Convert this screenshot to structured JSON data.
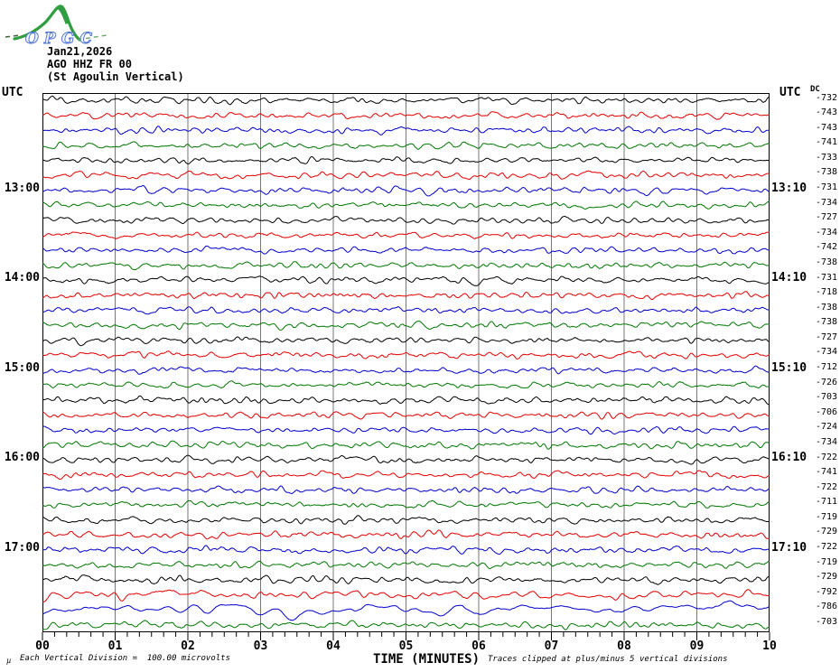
{
  "logo": {
    "text": "OPGC",
    "curve_color": "#2e9e40",
    "text_stroke_color": "#4a6fd4",
    "dash_color": "#44603a"
  },
  "header": {
    "date": "Jan21,2026",
    "station": "AGO HHZ FR 00",
    "station_name": "(St Agoulin Vertical)"
  },
  "axis": {
    "utc_left": "UTC",
    "utc_right": "UTC",
    "dc_header": "DC",
    "xlabel": "TIME (MINUTES)",
    "x_ticks": [
      "00",
      "01",
      "02",
      "03",
      "04",
      "05",
      "06",
      "07",
      "08",
      "09",
      "10"
    ],
    "x_minor_per_major": 5
  },
  "footer": {
    "mu": "µ",
    "division_note": "Each Vertical Division =  100.00 microvolts",
    "clip_note": "Traces clipped at plus/minus 5 vertical divisions"
  },
  "colors": {
    "trace_cycle": [
      "#000000",
      "#e60000",
      "#0000cc",
      "#007700"
    ],
    "trace_cycle_names": [
      "black",
      "red",
      "blue",
      "green"
    ],
    "grid": "#777777",
    "border": "#000000"
  },
  "chart_data": {
    "type": "line",
    "kind": "helicorder",
    "title": "AGO HHZ FR 00 (St Agoulin Vertical) Jan21,2026",
    "xlabel": "TIME (MINUTES)",
    "x_range_minutes": [
      0,
      10
    ],
    "minutes_per_row": 10,
    "grid": "vertical-minute-lines",
    "waveform_note": "continuous microseismic noise; synthesized per-row from seed/amp/sm",
    "hour_rows": {
      "left_labels": [
        "13:00",
        "14:00",
        "15:00",
        "16:00",
        "17:00"
      ],
      "right_labels": [
        "13:10",
        "14:10",
        "15:10",
        "16:10",
        "17:10"
      ]
    },
    "rows": [
      {
        "start": "12:00",
        "color": "black",
        "dc": -732,
        "amp": 1.0,
        "sm": 2
      },
      {
        "start": "12:10",
        "color": "red",
        "dc": -743,
        "amp": 1.0,
        "sm": 2
      },
      {
        "start": "12:20",
        "color": "blue",
        "dc": -743,
        "amp": 1.05,
        "sm": 2
      },
      {
        "start": "12:30",
        "color": "green",
        "dc": -741,
        "amp": 1.0,
        "sm": 2
      },
      {
        "start": "12:40",
        "color": "black",
        "dc": -733,
        "amp": 0.95,
        "sm": 2
      },
      {
        "start": "12:50",
        "color": "red",
        "dc": -738,
        "amp": 1.0,
        "sm": 2
      },
      {
        "start": "13:00",
        "color": "blue",
        "dc": -731,
        "amp": 1.05,
        "sm": 2,
        "left_label": "13:00",
        "right_label": "13:10"
      },
      {
        "start": "13:10",
        "color": "green",
        "dc": -734,
        "amp": 1.0,
        "sm": 2
      },
      {
        "start": "13:20",
        "color": "black",
        "dc": -727,
        "amp": 1.0,
        "sm": 2
      },
      {
        "start": "13:30",
        "color": "red",
        "dc": -734,
        "amp": 1.0,
        "sm": 2
      },
      {
        "start": "13:40",
        "color": "blue",
        "dc": -742,
        "amp": 1.0,
        "sm": 2
      },
      {
        "start": "13:50",
        "color": "green",
        "dc": -738,
        "amp": 1.0,
        "sm": 2
      },
      {
        "start": "14:00",
        "color": "black",
        "dc": -731,
        "amp": 1.0,
        "sm": 2,
        "left_label": "14:00",
        "right_label": "14:10"
      },
      {
        "start": "14:10",
        "color": "red",
        "dc": -718,
        "amp": 1.1,
        "sm": 2
      },
      {
        "start": "14:20",
        "color": "blue",
        "dc": -738,
        "amp": 1.0,
        "sm": 2
      },
      {
        "start": "14:30",
        "color": "green",
        "dc": -738,
        "amp": 1.0,
        "sm": 2
      },
      {
        "start": "14:40",
        "color": "black",
        "dc": -727,
        "amp": 1.0,
        "sm": 2
      },
      {
        "start": "14:50",
        "color": "red",
        "dc": -734,
        "amp": 1.0,
        "sm": 2
      },
      {
        "start": "15:00",
        "color": "blue",
        "dc": -712,
        "amp": 1.0,
        "sm": 2,
        "left_label": "15:00",
        "right_label": "15:10"
      },
      {
        "start": "15:10",
        "color": "green",
        "dc": -726,
        "amp": 1.0,
        "sm": 2
      },
      {
        "start": "15:20",
        "color": "black",
        "dc": -703,
        "amp": 1.05,
        "sm": 2
      },
      {
        "start": "15:30",
        "color": "red",
        "dc": -706,
        "amp": 1.0,
        "sm": 2
      },
      {
        "start": "15:40",
        "color": "blue",
        "dc": -724,
        "amp": 1.0,
        "sm": 2
      },
      {
        "start": "15:50",
        "color": "green",
        "dc": -734,
        "amp": 1.0,
        "sm": 2
      },
      {
        "start": "16:00",
        "color": "black",
        "dc": -722,
        "amp": 1.0,
        "sm": 2,
        "left_label": "16:00",
        "right_label": "16:10"
      },
      {
        "start": "16:10",
        "color": "red",
        "dc": -741,
        "amp": 1.0,
        "sm": 2
      },
      {
        "start": "16:20",
        "color": "blue",
        "dc": -722,
        "amp": 1.0,
        "sm": 2
      },
      {
        "start": "16:30",
        "color": "green",
        "dc": -711,
        "amp": 1.0,
        "sm": 2
      },
      {
        "start": "16:40",
        "color": "black",
        "dc": -719,
        "amp": 1.0,
        "sm": 2
      },
      {
        "start": "16:50",
        "color": "red",
        "dc": -729,
        "amp": 1.0,
        "sm": 2
      },
      {
        "start": "17:00",
        "color": "blue",
        "dc": -722,
        "amp": 1.1,
        "sm": 2,
        "left_label": "17:00",
        "right_label": "17:10"
      },
      {
        "start": "17:10",
        "color": "green",
        "dc": -719,
        "amp": 1.0,
        "sm": 2
      },
      {
        "start": "17:20",
        "color": "black",
        "dc": -729,
        "amp": 1.15,
        "sm": 2
      },
      {
        "start": "17:30",
        "color": "red",
        "dc": -792,
        "amp": 1.3,
        "sm": 3
      },
      {
        "start": "17:40",
        "color": "blue",
        "dc": -786,
        "amp": 1.75,
        "sm": 6
      },
      {
        "start": "17:50",
        "color": "green",
        "dc": -703,
        "amp": 1.0,
        "sm": 2
      }
    ]
  }
}
